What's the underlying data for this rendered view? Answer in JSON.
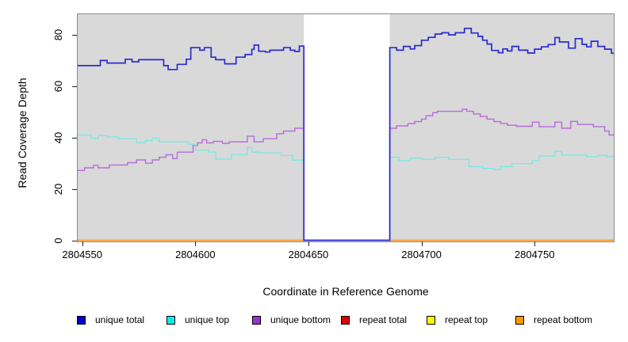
{
  "chart_data": {
    "type": "line",
    "title": "",
    "xlabel": "Coordinate in Reference Genome",
    "ylabel": "Read Coverage Depth",
    "xlim": [
      2804548,
      2804785
    ],
    "ylim": [
      0,
      88
    ],
    "grid": false,
    "plot_bg": "#d9d9d9",
    "masked_region": {
      "x_start": 2804648,
      "x_end": 2804686,
      "fill": "#ffffff"
    },
    "x_ticks": [
      {
        "value": 2804550,
        "label": "2804550"
      },
      {
        "value": 2804600,
        "label": "2804600"
      },
      {
        "value": 2804650,
        "label": "2804650"
      },
      {
        "value": 2804700,
        "label": "2804700"
      },
      {
        "value": 2804750,
        "label": "2804750"
      }
    ],
    "y_ticks": [
      {
        "value": 0,
        "label": "0"
      },
      {
        "value": 20,
        "label": "20"
      },
      {
        "value": 40,
        "label": "40"
      },
      {
        "value": 60,
        "label": "60"
      },
      {
        "value": 80,
        "label": "80"
      }
    ],
    "series": [
      {
        "name": "repeat total",
        "color": "#dd0000",
        "width": 1,
        "points": [
          [
            2804548,
            0
          ],
          [
            2804785,
            0
          ]
        ]
      },
      {
        "name": "repeat top",
        "color": "#ffee00",
        "width": 1,
        "points": [
          [
            2804548,
            0
          ],
          [
            2804785,
            0
          ]
        ]
      },
      {
        "name": "repeat bottom",
        "color": "#ff9512",
        "width": 1.6,
        "points": [
          [
            2804548,
            0
          ],
          [
            2804785,
            0
          ]
        ]
      },
      {
        "name": "unique bottom",
        "color": "#b76cd9",
        "width": 1.4,
        "points": [
          [
            2804548,
            27.2
          ],
          [
            2804551,
            28.2
          ],
          [
            2804555,
            29.2
          ],
          [
            2804557,
            28.2
          ],
          [
            2804562,
            29.3
          ],
          [
            2804570,
            30.2
          ],
          [
            2804574,
            31.3
          ],
          [
            2804578,
            30
          ],
          [
            2804581,
            31.3
          ],
          [
            2804584,
            32.3
          ],
          [
            2804587,
            33.3
          ],
          [
            2804590,
            31.8
          ],
          [
            2804592,
            34.3
          ],
          [
            2804599,
            36.9
          ],
          [
            2804601,
            37.9
          ],
          [
            2804603,
            39.1
          ],
          [
            2804605,
            37.9
          ],
          [
            2804608,
            38.5
          ],
          [
            2804612,
            37.7
          ],
          [
            2804615,
            38.3
          ],
          [
            2804623,
            40.5
          ],
          [
            2804626,
            38.3
          ],
          [
            2804630,
            39.5
          ],
          [
            2804636,
            41.5
          ],
          [
            2804639,
            42.5
          ],
          [
            2804644,
            43.6
          ],
          [
            2804648,
            0
          ],
          [
            2804686,
            43.6
          ],
          [
            2804689,
            44.5
          ],
          [
            2804694,
            45.4
          ],
          [
            2804697,
            46.2
          ],
          [
            2804700,
            47.2
          ],
          [
            2804702,
            48.5
          ],
          [
            2804705,
            49.7
          ],
          [
            2804707,
            50.2
          ],
          [
            2804718,
            51
          ],
          [
            2804720,
            50.2
          ],
          [
            2804723,
            49.2
          ],
          [
            2804726,
            48.2
          ],
          [
            2804729,
            47.2
          ],
          [
            2804732,
            46.2
          ],
          [
            2804735,
            45.5
          ],
          [
            2804738,
            44.8
          ],
          [
            2804742,
            44.4
          ],
          [
            2804749,
            46
          ],
          [
            2804752,
            44.2
          ],
          [
            2804759,
            46
          ],
          [
            2804762,
            43.6
          ],
          [
            2804766,
            46.3
          ],
          [
            2804769,
            45.1
          ],
          [
            2804776,
            44.2
          ],
          [
            2804781,
            42.5
          ],
          [
            2804783,
            41
          ]
        ]
      },
      {
        "name": "unique top",
        "color": "#7de8e2",
        "width": 1.4,
        "points": [
          [
            2804548,
            41
          ],
          [
            2804554,
            39.7
          ],
          [
            2804557,
            40.8
          ],
          [
            2804561,
            40.2
          ],
          [
            2804566,
            39.5
          ],
          [
            2804574,
            38
          ],
          [
            2804578,
            38.8
          ],
          [
            2804581,
            39.8
          ],
          [
            2804584,
            38.3
          ],
          [
            2804597,
            37.4
          ],
          [
            2804600,
            35.1
          ],
          [
            2804606,
            34.3
          ],
          [
            2804609,
            31.6
          ],
          [
            2804616,
            33.4
          ],
          [
            2804623,
            36.1
          ],
          [
            2804625,
            34.3
          ],
          [
            2804628,
            34
          ],
          [
            2804638,
            33
          ],
          [
            2804643,
            31.2
          ],
          [
            2804648,
            0
          ],
          [
            2804686,
            32.3
          ],
          [
            2804690,
            31
          ],
          [
            2804695,
            32
          ],
          [
            2804700,
            31.5
          ],
          [
            2804706,
            32.3
          ],
          [
            2804712,
            31.5
          ],
          [
            2804721,
            28.7
          ],
          [
            2804727,
            28
          ],
          [
            2804732,
            27.5
          ],
          [
            2804735,
            28.7
          ],
          [
            2804740,
            29.8
          ],
          [
            2804749,
            31
          ],
          [
            2804752,
            32.8
          ],
          [
            2804759,
            34.6
          ],
          [
            2804762,
            33.2
          ],
          [
            2804770,
            33.2
          ],
          [
            2804773,
            32.6
          ],
          [
            2804778,
            33
          ],
          [
            2804782,
            32.5
          ]
        ]
      },
      {
        "name": "unique total",
        "color": "#2b2bd0",
        "width": 1.7,
        "points": [
          [
            2804548,
            68
          ],
          [
            2804558,
            70
          ],
          [
            2804561,
            69
          ],
          [
            2804569,
            70.5
          ],
          [
            2804572,
            69.5
          ],
          [
            2804575,
            70.3
          ],
          [
            2804586,
            68
          ],
          [
            2804588,
            66.5
          ],
          [
            2804592,
            68.5
          ],
          [
            2804596,
            70.5
          ],
          [
            2804598,
            75
          ],
          [
            2804602,
            74
          ],
          [
            2804604,
            75
          ],
          [
            2804607,
            71.3
          ],
          [
            2804609,
            70.3
          ],
          [
            2804613,
            68.7
          ],
          [
            2804618,
            71.3
          ],
          [
            2804622,
            72.3
          ],
          [
            2804625,
            74.3
          ],
          [
            2804626,
            76
          ],
          [
            2804628,
            73.6
          ],
          [
            2804631,
            73.3
          ],
          [
            2804633,
            74
          ],
          [
            2804639,
            75
          ],
          [
            2804642,
            74
          ],
          [
            2804644,
            73.5
          ],
          [
            2804646,
            75.6
          ],
          [
            2804648,
            0
          ],
          [
            2804686,
            75
          ],
          [
            2804689,
            74
          ],
          [
            2804692,
            75.5
          ],
          [
            2804695,
            74.5
          ],
          [
            2804697,
            75.8
          ],
          [
            2804700,
            77.9
          ],
          [
            2804703,
            79
          ],
          [
            2804706,
            80.3
          ],
          [
            2804709,
            80.8
          ],
          [
            2804712,
            80
          ],
          [
            2804715,
            80.8
          ],
          [
            2804719,
            82.5
          ],
          [
            2804722,
            80.7
          ],
          [
            2804725,
            79.4
          ],
          [
            2804727,
            77.9
          ],
          [
            2804729,
            76.4
          ],
          [
            2804731,
            73.9
          ],
          [
            2804734,
            73
          ],
          [
            2804736,
            74.5
          ],
          [
            2804738,
            73.7
          ],
          [
            2804740,
            75.5
          ],
          [
            2804743,
            74
          ],
          [
            2804747,
            72.9
          ],
          [
            2804750,
            74.4
          ],
          [
            2804753,
            75.3
          ],
          [
            2804756,
            76.2
          ],
          [
            2804759,
            78.9
          ],
          [
            2804761,
            77.2
          ],
          [
            2804765,
            74.8
          ],
          [
            2804768,
            78.5
          ],
          [
            2804771,
            76.3
          ],
          [
            2804773,
            75.3
          ],
          [
            2804775,
            77.5
          ],
          [
            2804778,
            75.5
          ],
          [
            2804781,
            74.4
          ],
          [
            2804784,
            72.8
          ]
        ]
      }
    ],
    "legend": [
      {
        "label": "unique total",
        "swatch": "#0000cc"
      },
      {
        "label": "unique top",
        "swatch": "#00eeee"
      },
      {
        "label": "unique bottom",
        "swatch": "#9933cc"
      },
      {
        "label": "repeat total",
        "swatch": "#dd0000"
      },
      {
        "label": "repeat top",
        "swatch": "#ffff00"
      },
      {
        "label": "repeat bottom",
        "swatch": "#ff9900"
      }
    ],
    "legend_position": "bottom",
    "legend_x_offsets": [
      97,
      210,
      318,
      430,
      538,
      650
    ]
  }
}
